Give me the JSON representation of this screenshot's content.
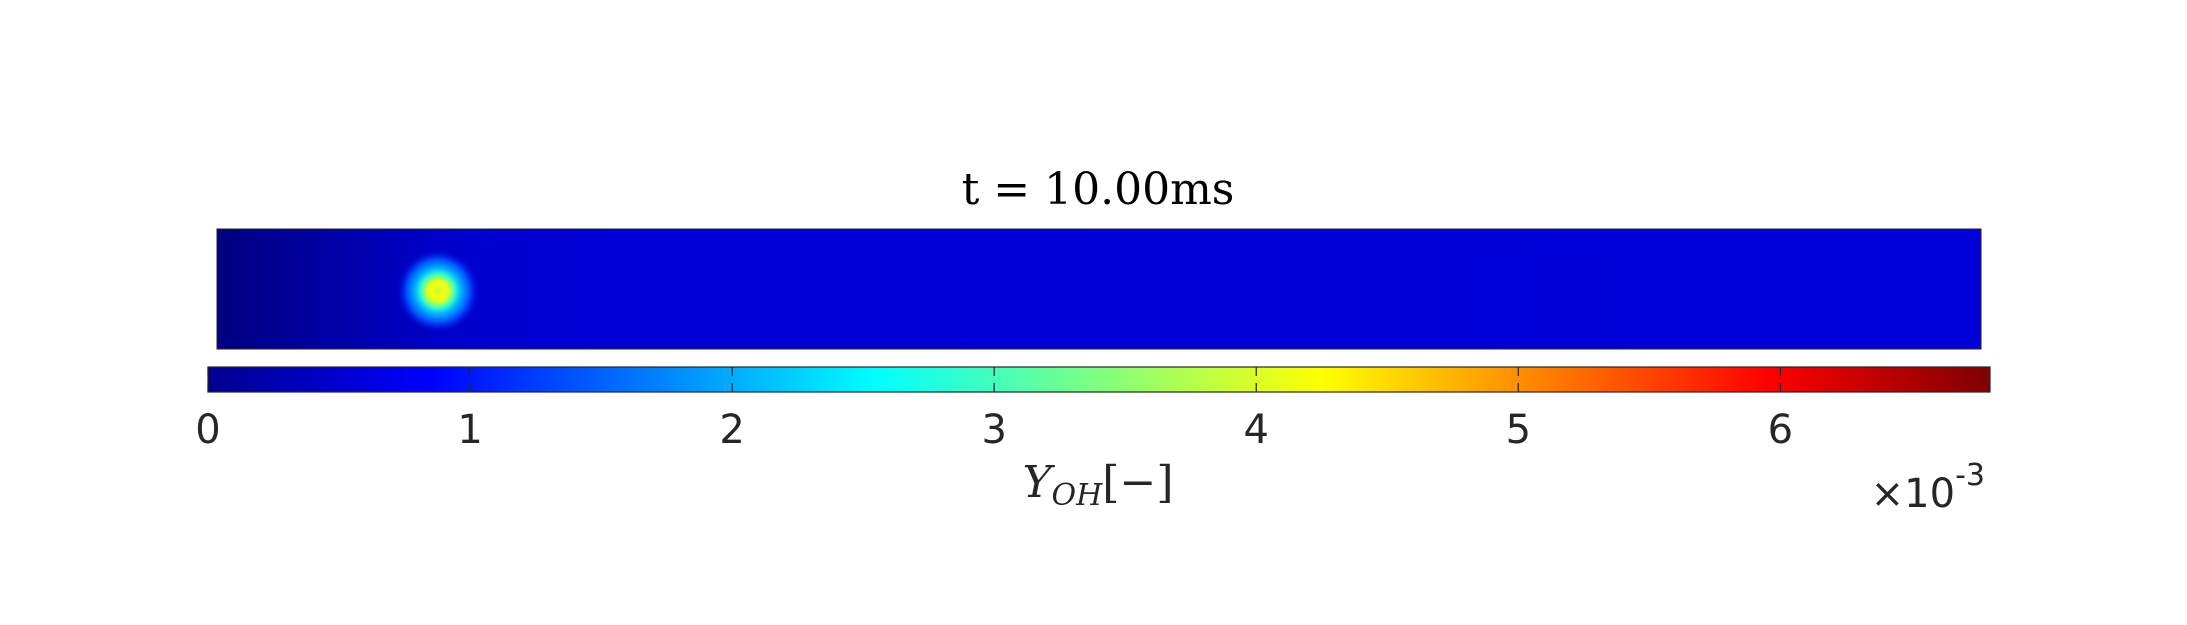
{
  "chart_data": {
    "type": "heatmap",
    "title": "t = 10.00ms",
    "field_colormap": "jet",
    "field_background_value": 0.00053,
    "field_left_edge_value": 5e-05,
    "hotspot": {
      "x_fraction": 0.125,
      "y_fraction": 0.5,
      "peak_value": 0.0045
    },
    "colorbar": {
      "orientation": "horizontal",
      "location": "south",
      "clim": [
        0,
        0.0068
      ],
      "ticks": [
        0,
        1,
        2,
        3,
        4,
        5,
        6
      ],
      "tick_labels": [
        "0",
        "1",
        "2",
        "3",
        "4",
        "5",
        "6"
      ],
      "tick_max": 6.8,
      "label_main": "Y",
      "label_sub": "OH",
      "label_units": "[−]",
      "exponent_base": "×10",
      "exponent_power": "-3"
    }
  }
}
